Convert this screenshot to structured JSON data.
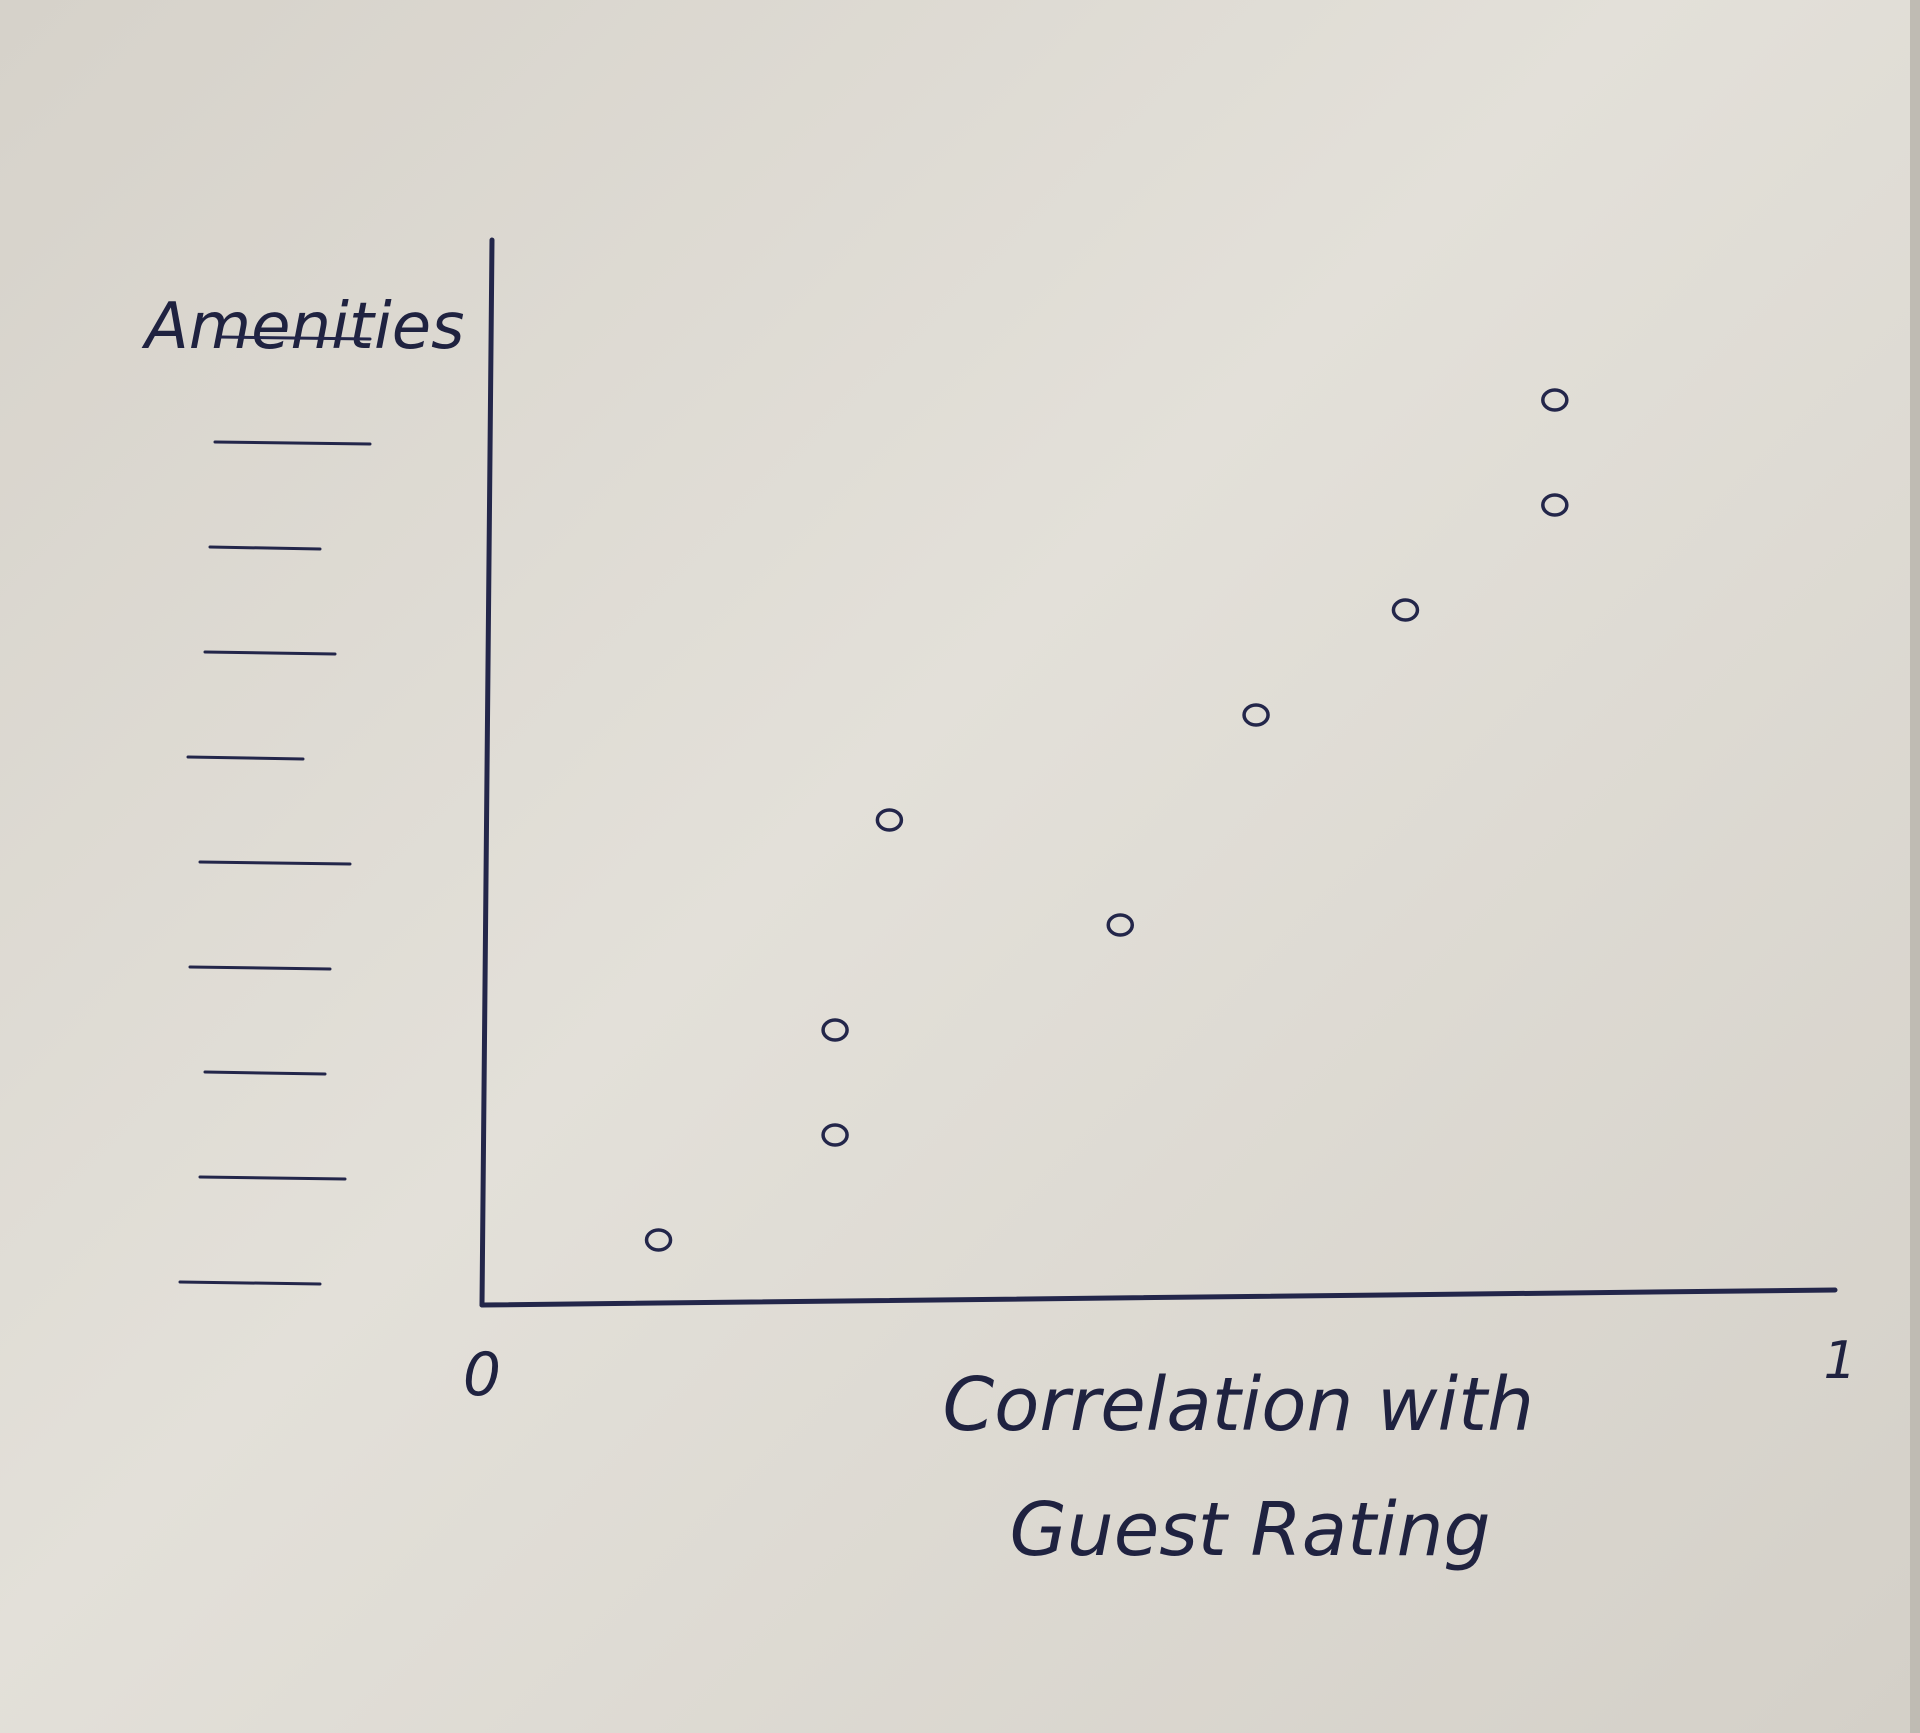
{
  "chart_data": {
    "type": "scatter",
    "title": "",
    "xlabel": "Correlation with Guest Rating",
    "ylabel": "Amenities",
    "xlim": [
      0,
      1
    ],
    "x_tick_labels": [
      "0",
      "1"
    ],
    "y_categories": [
      "",
      "",
      "",
      "",
      "",
      "",
      "",
      "",
      "",
      ""
    ],
    "points": [
      {
        "x": 0.13,
        "y": 1
      },
      {
        "x": 0.26,
        "y": 2
      },
      {
        "x": 0.26,
        "y": 3
      },
      {
        "x": 0.47,
        "y": 4
      },
      {
        "x": 0.3,
        "y": 5
      },
      {
        "x": 0.57,
        "y": 6
      },
      {
        "x": 0.68,
        "y": 7
      },
      {
        "x": 0.79,
        "y": 8
      },
      {
        "x": 0.79,
        "y": 9
      }
    ],
    "grid": false,
    "legend": "none",
    "ink_color": "#23264a",
    "paper_color": "#dedbd4"
  }
}
